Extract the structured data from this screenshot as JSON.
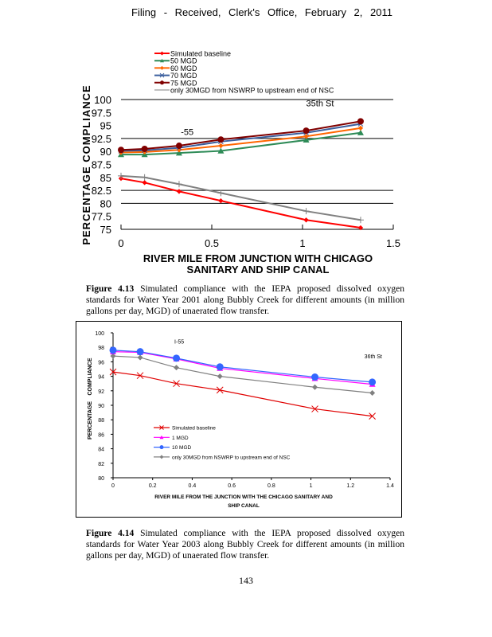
{
  "header": {
    "text": "Filing  - Received,  Clerk's  Office,  February  2, 2011"
  },
  "figures": [
    {
      "caption_label": "Figure  4.13",
      "caption_text": "Simulated  compliance  with the IEPA proposed dissolved oxygen standards for Water Year 2001 along Bubbly Creek for different amounts (in million gallons per day, MGD) of unaerated flow transfer."
    },
    {
      "caption_label": "Figure  4.14",
      "caption_text": "Simulated  compliance  with the IEPA proposed dissolved oxygen standards for Water Year 2003 along Bubbly Creek for different amounts (in million gallons per day, MGD) of unaerated flow transfer."
    }
  ],
  "page_number": "143",
  "chart_data": [
    {
      "type": "line",
      "title": "",
      "xlabel": "RIVER MILE FROM JUNCTION WITH CHICAGO SANITARY AND SHIP CANAL",
      "xlabel_lines": [
        "RIVER MILE FROM JUNCTION WITH CHICAGO",
        "SANITARY AND SHIP CANAL"
      ],
      "ylabel": "PERCENTAGE COMPLIANCE",
      "xlim": [
        0,
        1.5
      ],
      "ylim": [
        75,
        100
      ],
      "xticks": [
        "0",
        "0.5",
        "1",
        "1.5"
      ],
      "xtick_values": [
        0,
        0.5,
        1,
        1.5
      ],
      "yticks": [
        "100",
        "97.5",
        "95",
        "92.5",
        "90",
        "87.5",
        "85",
        "82.5",
        "80",
        "77.5",
        "75"
      ],
      "ytick_values": [
        100,
        97.5,
        95,
        92.5,
        90,
        87.5,
        85,
        82.5,
        80,
        77.5,
        75
      ],
      "gridlines_y": [
        100,
        92.5,
        82.5,
        80,
        75
      ],
      "legend_position": "top",
      "annotations": [
        {
          "text": "-55",
          "x": 0.33,
          "y": 93.2
        },
        {
          "text": "35th St",
          "x": 1.02,
          "y": 98.7
        }
      ],
      "x": [
        0,
        0.13,
        0.32,
        0.55,
        1.02,
        1.32
      ],
      "series": [
        {
          "name": "Simulated baseline",
          "color": "#ff0000",
          "marker": "diamond",
          "values": [
            84.8,
            84.0,
            82.3,
            80.5,
            76.8,
            75.3
          ]
        },
        {
          "name": "50 MGD",
          "color": "#2e8b57",
          "marker": "triangle",
          "values": [
            89.4,
            89.4,
            89.7,
            90.1,
            92.2,
            93.6
          ]
        },
        {
          "name": "60 MGD",
          "color": "#ff6600",
          "marker": "diamond",
          "values": [
            89.8,
            89.9,
            90.3,
            91.1,
            92.9,
            94.5
          ]
        },
        {
          "name": "70 MGD",
          "color": "#3b5f9e",
          "marker": "x",
          "values": [
            90.1,
            90.2,
            90.7,
            91.9,
            93.6,
            95.3
          ]
        },
        {
          "name": "75 MGD",
          "color": "#800000",
          "marker": "circle",
          "values": [
            90.3,
            90.5,
            91.1,
            92.3,
            94.0,
            95.8
          ]
        },
        {
          "name": "only 30MGD from NSWRP to upstream end of NSC",
          "color": "#808080",
          "marker": "plus",
          "values": [
            85.3,
            85.0,
            83.7,
            82.0,
            78.5,
            76.8
          ]
        }
      ]
    },
    {
      "type": "line",
      "title": "",
      "xlabel": "RIVER  MILE  FROM  THE  JUNCTION  WITH  THE  CHICAGO  SANITARY  AND SHIP CANAL",
      "xlabel_lines": [
        "RIVER    MILE    FROM    THE    JUNCTION      WITH    THE    CHICAGO       SANITARY       AND",
        "SHIP     CANAL"
      ],
      "ylabel": "PERCENTAGE  COMPLIANCE",
      "ylabel_parts": [
        "PERCENTAGE",
        "COMPLIANCE"
      ],
      "xlim": [
        0,
        1.4
      ],
      "ylim": [
        80,
        100
      ],
      "xticks": [
        "0",
        "0.2",
        "0.4",
        "0.6",
        "0.8",
        "1",
        "1.2",
        "1.4"
      ],
      "xtick_values": [
        0,
        0.2,
        0.4,
        0.6,
        0.8,
        1,
        1.2,
        1.4
      ],
      "yticks": [
        "100",
        "98",
        "96",
        "94",
        "92",
        "90",
        "88",
        "86",
        "84",
        "82",
        "80"
      ],
      "ytick_values": [
        100,
        98,
        96,
        94,
        92,
        90,
        88,
        86,
        84,
        82,
        80
      ],
      "legend_position": "lower-left",
      "annotations": [
        {
          "text": "I-55",
          "x": 0.31,
          "y": 98.5
        },
        {
          "text": "36th   St",
          "x": 1.27,
          "y": 96.5
        }
      ],
      "x": [
        0,
        0.137,
        0.32,
        0.54,
        1.02,
        1.31
      ],
      "series": [
        {
          "name": "Simulated     baseline",
          "color": "#e00000",
          "marker": "x",
          "values": [
            94.6,
            94.1,
            93.0,
            92.1,
            89.5,
            88.5
          ]
        },
        {
          "name": "1  MGD",
          "color": "#ff00ff",
          "marker": "triangle",
          "values": [
            97.4,
            97.3,
            96.4,
            95.1,
            93.7,
            92.9
          ]
        },
        {
          "name": "10  MGD",
          "color": "#3366ff",
          "marker": "circle",
          "values": [
            97.6,
            97.4,
            96.5,
            95.3,
            93.9,
            93.2
          ]
        },
        {
          "name": "only   30MGD     from    NSWRP     to  upstream     end   of  NSC",
          "color": "#808080",
          "marker": "diamond",
          "values": [
            96.8,
            96.6,
            95.2,
            94.0,
            92.5,
            91.7
          ]
        }
      ]
    }
  ]
}
